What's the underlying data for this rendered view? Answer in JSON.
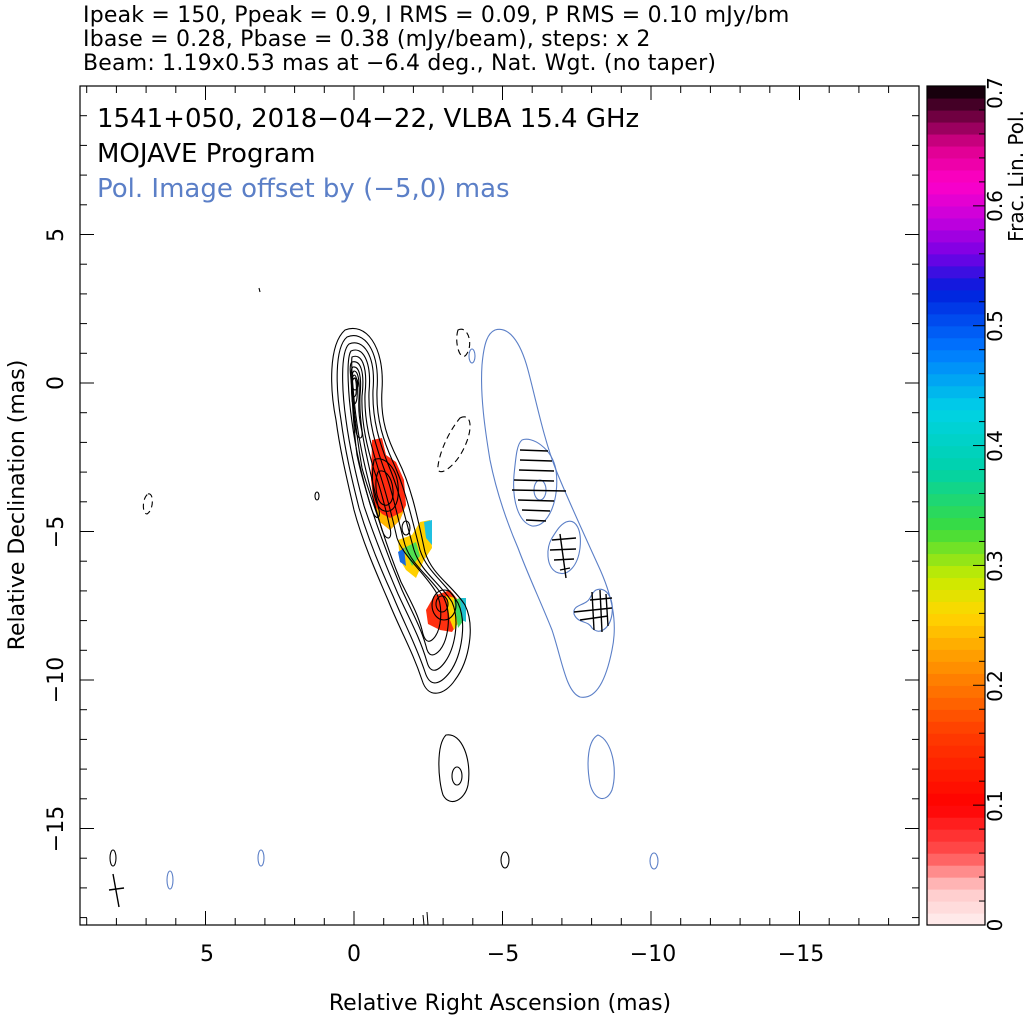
{
  "header": {
    "line1": "Ipeak = 150, Ppeak = 0.9, I RMS = 0.09, P RMS = 0.10 mJy/bm",
    "line2": "Ibase = 0.28, Pbase = 0.38 (mJy/beam), steps: x 2",
    "line3": "Beam: 1.19x0.53 mas at −6.4 deg., Nat. Wgt. (no taper)"
  },
  "labels": {
    "source": "1541+050, 2018−04−22, VLBA 15.4 GHz",
    "program": "MOJAVE Program",
    "offset_note": "Pol. Image offset by (−5,0) mas"
  },
  "colors": {
    "stokes_i_contour": "#000000",
    "pol_contour": "#5b7fc7",
    "annotation_blue": "#5b7fc7"
  },
  "chart_data": {
    "type": "contour",
    "xlabel": "Relative Right Ascension (mas)",
    "ylabel": "Relative Declination (mas)",
    "xlim": [
      9.3,
      -19.0
    ],
    "ylim": [
      -18.0,
      10.0
    ],
    "x_ticks": [
      {
        "value": 5,
        "label": "5"
      },
      {
        "value": 0,
        "label": "0"
      },
      {
        "value": -5,
        "label": "−5"
      },
      {
        "value": -10,
        "label": "−10"
      },
      {
        "value": -15,
        "label": "−15"
      }
    ],
    "y_ticks": [
      {
        "value": 5,
        "label": "5"
      },
      {
        "value": 0,
        "label": "0"
      },
      {
        "value": -5,
        "label": "−5"
      },
      {
        "value": -10,
        "label": "−10"
      },
      {
        "value": -15,
        "label": "−15"
      }
    ],
    "colorbar": {
      "label": "Frac. Lin. Pol.",
      "range": [
        0,
        0.7
      ],
      "ticks": [
        "0",
        "0.1",
        "0.2",
        "0.3",
        "0.4",
        "0.5",
        "0.6",
        "0.7"
      ]
    },
    "core_position": [
      0,
      0
    ],
    "jet_components": [
      {
        "x": -1.0,
        "y": -3.5
      },
      {
        "x": -3.0,
        "y": -7.6
      },
      {
        "x": -3.5,
        "y": -13.2
      }
    ],
    "beam": {
      "major_mas": 1.19,
      "minor_mas": 0.53,
      "pa_deg": -6.4,
      "x": 8.2,
      "y": -17.0
    },
    "pol_offset_mas": [
      -5,
      0
    ],
    "fractional_pol_patches": [
      {
        "x": -1.0,
        "y": -3.6,
        "frac_pol": 0.15
      },
      {
        "x": -2.0,
        "y": -5.5,
        "frac_pol": 0.3
      },
      {
        "x": -2.9,
        "y": -7.8,
        "frac_pol": 0.12
      },
      {
        "x": -3.5,
        "y": -7.5,
        "frac_pol": 0.42
      }
    ]
  }
}
